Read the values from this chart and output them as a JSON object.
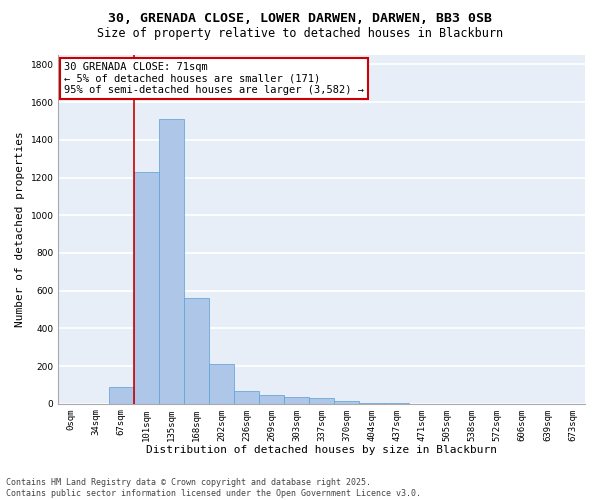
{
  "title_line1": "30, GRENADA CLOSE, LOWER DARWEN, DARWEN, BB3 0SB",
  "title_line2": "Size of property relative to detached houses in Blackburn",
  "xlabel": "Distribution of detached houses by size in Blackburn",
  "ylabel": "Number of detached properties",
  "categories": [
    "0sqm",
    "34sqm",
    "67sqm",
    "101sqm",
    "135sqm",
    "168sqm",
    "202sqm",
    "236sqm",
    "269sqm",
    "303sqm",
    "337sqm",
    "370sqm",
    "404sqm",
    "437sqm",
    "471sqm",
    "505sqm",
    "538sqm",
    "572sqm",
    "606sqm",
    "639sqm",
    "673sqm"
  ],
  "values": [
    0,
    0,
    90,
    1230,
    1510,
    560,
    210,
    65,
    45,
    35,
    28,
    12,
    5,
    2,
    1,
    0,
    0,
    0,
    0,
    0,
    0
  ],
  "bar_color": "#aec6e8",
  "bar_edge_color": "#5a9fd4",
  "ylim": [
    0,
    1850
  ],
  "yticks": [
    0,
    200,
    400,
    600,
    800,
    1000,
    1200,
    1400,
    1600,
    1800
  ],
  "annotation_line1": "30 GRENADA CLOSE: 71sqm",
  "annotation_line2": "← 5% of detached houses are smaller (171)",
  "annotation_line3": "95% of semi-detached houses are larger (3,582) →",
  "vline_x_index": 2.5,
  "vline_color": "#cc0000",
  "background_color": "#e8eef8",
  "grid_color": "#ffffff",
  "footer_line1": "Contains HM Land Registry data © Crown copyright and database right 2025.",
  "footer_line2": "Contains public sector information licensed under the Open Government Licence v3.0.",
  "title_fontsize": 9.5,
  "subtitle_fontsize": 8.5,
  "tick_fontsize": 6.5,
  "ylabel_fontsize": 8,
  "xlabel_fontsize": 8,
  "footer_fontsize": 6,
  "annotation_fontsize": 7.5
}
